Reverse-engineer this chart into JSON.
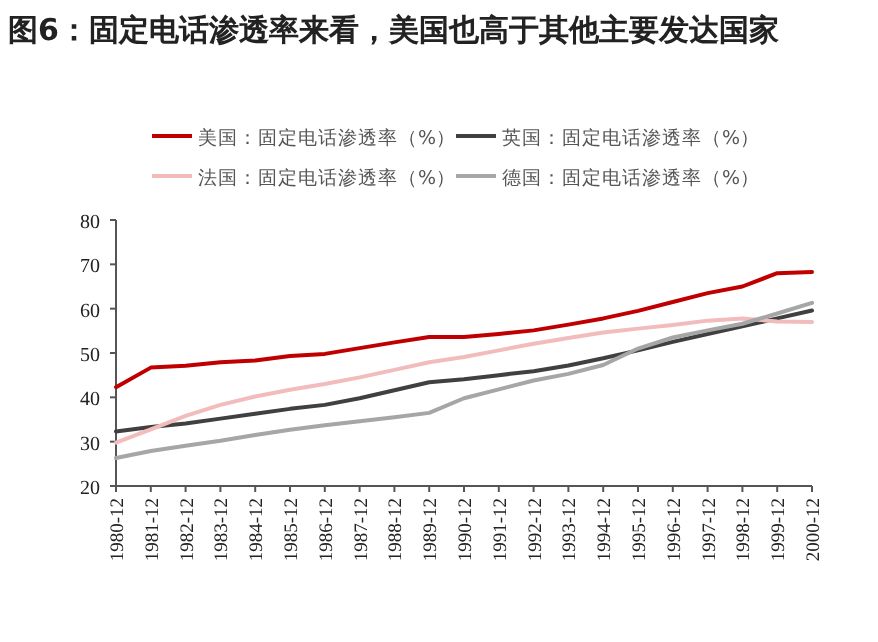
{
  "chart_data": {
    "type": "line",
    "title": "图6：固定电话渗透率来看，美国也高于其他主要发达国家",
    "categories": [
      "1980-12",
      "1981-12",
      "1982-12",
      "1983-12",
      "1984-12",
      "1985-12",
      "1986-12",
      "1987-12",
      "1988-12",
      "1989-12",
      "1990-12",
      "1991-12",
      "1992-12",
      "1993-12",
      "1994-12",
      "1995-12",
      "1996-12",
      "1997-12",
      "1998-12",
      "1999-12",
      "2000-12"
    ],
    "series": [
      {
        "name": "美国：固定电话渗透率（%）",
        "color": "#c00000",
        "values": [
          42.3,
          46.7,
          47.1,
          47.9,
          48.3,
          49.3,
          49.8,
          51.1,
          52.4,
          53.6,
          53.6,
          54.3,
          55.1,
          56.4,
          57.8,
          59.5,
          61.5,
          63.5,
          65.0,
          68.0,
          68.3
        ]
      },
      {
        "name": "英国：固定电话渗透率（%）",
        "color": "#404040",
        "values": [
          32.3,
          33.3,
          34.1,
          35.2,
          36.3,
          37.4,
          38.3,
          39.8,
          41.6,
          43.4,
          44.1,
          45.0,
          45.9,
          47.2,
          48.8,
          50.6,
          52.5,
          54.3,
          56.0,
          57.8,
          59.6
        ]
      },
      {
        "name": "法国：固定电话渗透率（%）",
        "color": "#f2bcbc",
        "values": [
          29.8,
          32.8,
          35.8,
          38.3,
          40.2,
          41.7,
          43.0,
          44.5,
          46.2,
          47.9,
          49.1,
          50.6,
          52.1,
          53.4,
          54.6,
          55.5,
          56.3,
          57.3,
          57.8,
          57.1,
          57.0
        ]
      },
      {
        "name": "德国：固定电话渗透率（%）",
        "color": "#a6a6a6",
        "values": [
          26.3,
          27.9,
          29.1,
          30.2,
          31.5,
          32.7,
          33.7,
          34.6,
          35.5,
          36.5,
          39.8,
          41.8,
          43.8,
          45.3,
          47.3,
          51.0,
          53.5,
          55.1,
          56.6,
          58.9,
          61.3
        ]
      }
    ],
    "ylim": [
      20,
      80
    ],
    "yticks": [
      20,
      30,
      40,
      50,
      60,
      70,
      80
    ],
    "grid": false,
    "legend": "top",
    "marker": "none",
    "line_style": "solid"
  }
}
